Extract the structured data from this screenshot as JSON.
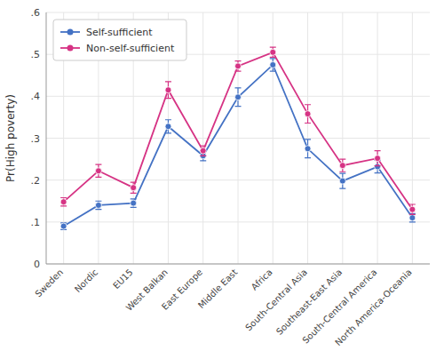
{
  "chart_data": {
    "type": "line",
    "categories": [
      "Sweden",
      "Nordic",
      "EU15",
      "West Balkan",
      "East Europe",
      "Middle East",
      "Africa",
      "South-Central Asia",
      "Southeast-East Asia",
      "South-Central America",
      "North America-Oceania"
    ],
    "series": [
      {
        "name": "Self-sufficient",
        "color": "#4472C4",
        "values": [
          0.09,
          0.14,
          0.145,
          0.328,
          0.258,
          0.398,
          0.475,
          0.275,
          0.198,
          0.232,
          0.11
        ],
        "ci_low": [
          0.008,
          0.01,
          0.01,
          0.016,
          0.012,
          0.022,
          0.015,
          0.022,
          0.018,
          0.015,
          0.01
        ],
        "ci_high": [
          0.008,
          0.01,
          0.01,
          0.016,
          0.012,
          0.022,
          0.015,
          0.022,
          0.018,
          0.015,
          0.01
        ]
      },
      {
        "name": "Non-self-sufficient",
        "color": "#D63384",
        "values": [
          0.148,
          0.222,
          0.182,
          0.415,
          0.27,
          0.472,
          0.505,
          0.358,
          0.235,
          0.252,
          0.13
        ],
        "ci_low": [
          0.01,
          0.015,
          0.013,
          0.02,
          0.012,
          0.012,
          0.012,
          0.022,
          0.015,
          0.018,
          0.012
        ],
        "ci_high": [
          0.01,
          0.015,
          0.013,
          0.02,
          0.012,
          0.012,
          0.012,
          0.022,
          0.015,
          0.018,
          0.012
        ]
      }
    ],
    "ylabel": "Pr(High poverty)",
    "ylim": [
      0,
      0.6
    ],
    "yticks": [
      0,
      {
        "value": 0.1,
        "label": ".1"
      },
      {
        "value": 0.2,
        "label": ".2"
      },
      {
        "value": 0.3,
        "label": ".3"
      },
      {
        "value": 0.4,
        "label": ".4"
      },
      {
        "value": 0.5,
        "label": ".5"
      },
      {
        "value": 0.6,
        "label": ".6"
      }
    ],
    "grid": true,
    "legend": "upper left",
    "marker": "circle"
  }
}
